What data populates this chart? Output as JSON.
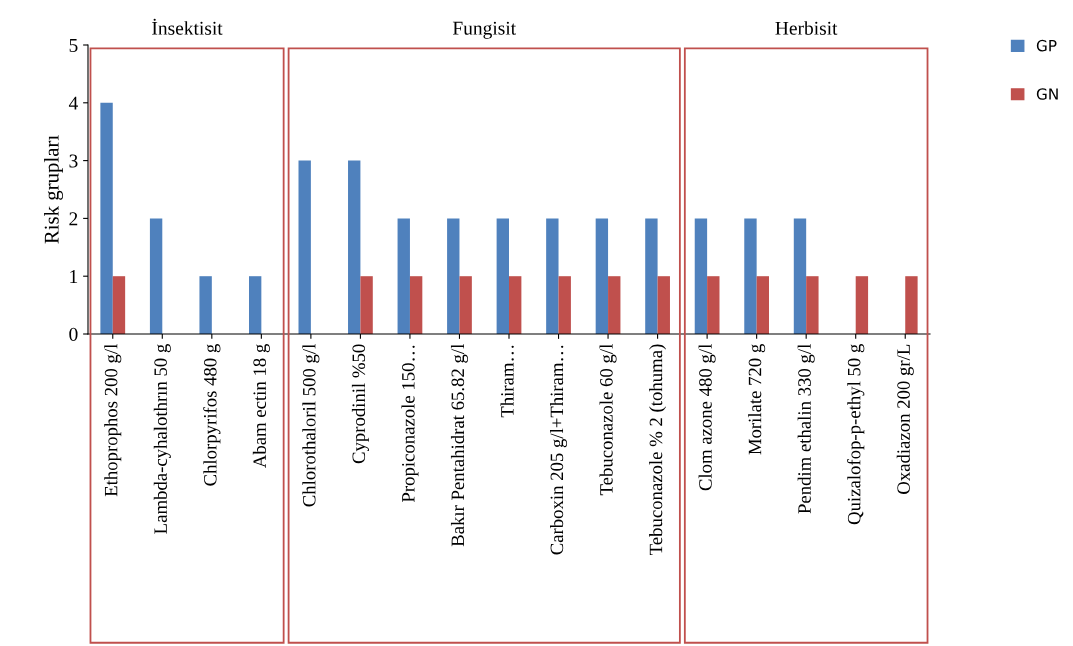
{
  "chart_data": {
    "type": "bar",
    "ylabel": "Risk grupları",
    "categories": [
      "Ethoprophos 200 g/l",
      "Lambda-cyhalothrın 50 g",
      "Chlorpyrifos 480 g",
      "Abam ectin 18 g",
      "Chlorothaloril 500 g/l",
      "Cyprodinil %50",
      "Propiconazole 150…",
      "Bakır Pentahidrat 65.82 g/l",
      "Thiram…",
      "Carboxin 205 g/l+Thiram…",
      "Tebuconazole 60 g/l",
      "Tebuconazole % 2 (tohuma)",
      "Clom azone 480 g/l",
      "Morilate 720 g",
      "Pendim ethalin 330 g/l",
      "Quizalofop-p-ethyl 50 g",
      "Oxadiazon 200 gr/L"
    ],
    "series": [
      {
        "name": "GP",
        "color": "#4f81bd",
        "values": [
          4,
          2,
          1,
          1,
          3,
          3,
          2,
          2,
          2,
          2,
          2,
          2,
          2,
          2,
          2,
          0,
          0
        ]
      },
      {
        "name": "GN",
        "color": "#c0504d",
        "values": [
          1,
          0,
          0,
          0,
          0,
          1,
          1,
          1,
          1,
          1,
          1,
          1,
          1,
          1,
          1,
          1,
          1
        ]
      }
    ],
    "ylim": [
      0,
      5
    ],
    "yticks": [
      0,
      1,
      2,
      3,
      4,
      5
    ],
    "legend": "top right",
    "annotations": [
      "İnsektisit",
      "Fungisit",
      "Herbisit"
    ]
  }
}
